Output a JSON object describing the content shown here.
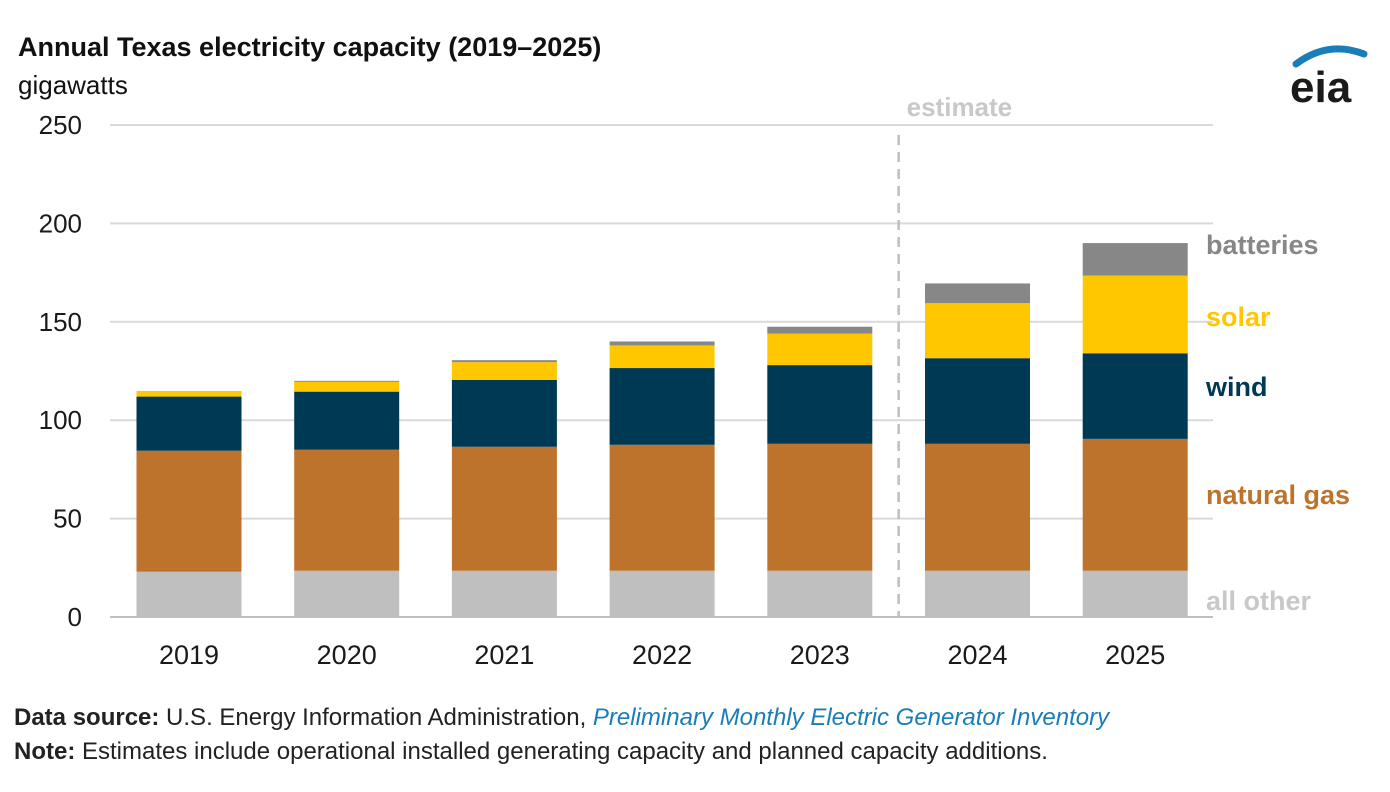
{
  "header": {
    "title": "Annual Texas electricity capacity (2019–2025)",
    "units": "gigawatts",
    "logo_text": "eia"
  },
  "footer": {
    "source_label": "Data source:",
    "source_text": " U.S. Energy Information Administration, ",
    "source_title": "Preliminary Monthly Electric Generator Inventory",
    "note_label": "Note:",
    "note_text": " Estimates include operational installed generating capacity and planned capacity additions."
  },
  "colors": {
    "all_other": "#bfbfbf",
    "natural_gas": "#bd732c",
    "wind": "#003953",
    "solar": "#ffc700",
    "batteries": "#878787",
    "grid": "#d9d9d9",
    "estimate_line": "#bfbfbf",
    "logo_blue": "#1a7db8"
  },
  "chart_data": {
    "type": "bar",
    "stacked": true,
    "categories": [
      "2019",
      "2020",
      "2021",
      "2022",
      "2023",
      "2024",
      "2025"
    ],
    "series": [
      {
        "name": "all other",
        "color": "#bfbfbf",
        "values": [
          23,
          23.5,
          23.5,
          23.5,
          23.5,
          23.5,
          23.5
        ]
      },
      {
        "name": "natural gas",
        "color": "#bd732c",
        "values": [
          61.5,
          61.5,
          63,
          64,
          64.5,
          64.5,
          67
        ]
      },
      {
        "name": "wind",
        "color": "#003953",
        "values": [
          27.5,
          29.5,
          34,
          39,
          40,
          43.5,
          43.5
        ]
      },
      {
        "name": "solar",
        "color": "#ffc700",
        "values": [
          2.5,
          5,
          9,
          11.5,
          16,
          28,
          39.5
        ]
      },
      {
        "name": "batteries",
        "color": "#878787",
        "values": [
          0.2,
          0.5,
          1,
          2,
          3.5,
          10,
          16.5
        ]
      }
    ],
    "ylim": [
      0,
      250
    ],
    "yticks": [
      0,
      50,
      100,
      150,
      200,
      250
    ],
    "estimate_label": "estimate",
    "estimate_after": "2023",
    "legend_position": "right",
    "grid": true
  }
}
